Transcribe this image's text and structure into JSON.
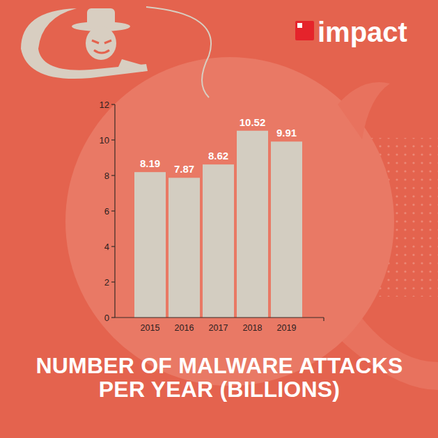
{
  "logo": {
    "text": "impact"
  },
  "chart_data": {
    "type": "bar",
    "title": "NUMBER OF MALWARE ATTACKS PER YEAR (BILLIONS)",
    "categories": [
      "2015",
      "2016",
      "2017",
      "2018",
      "2019"
    ],
    "values": [
      8.19,
      7.87,
      8.62,
      10.52,
      9.91
    ],
    "color": "#d3cdc1",
    "ylim": [
      0,
      12
    ],
    "yticks": [
      0,
      2,
      4,
      6,
      8,
      10,
      12
    ],
    "grid": false,
    "data_labels": true
  }
}
